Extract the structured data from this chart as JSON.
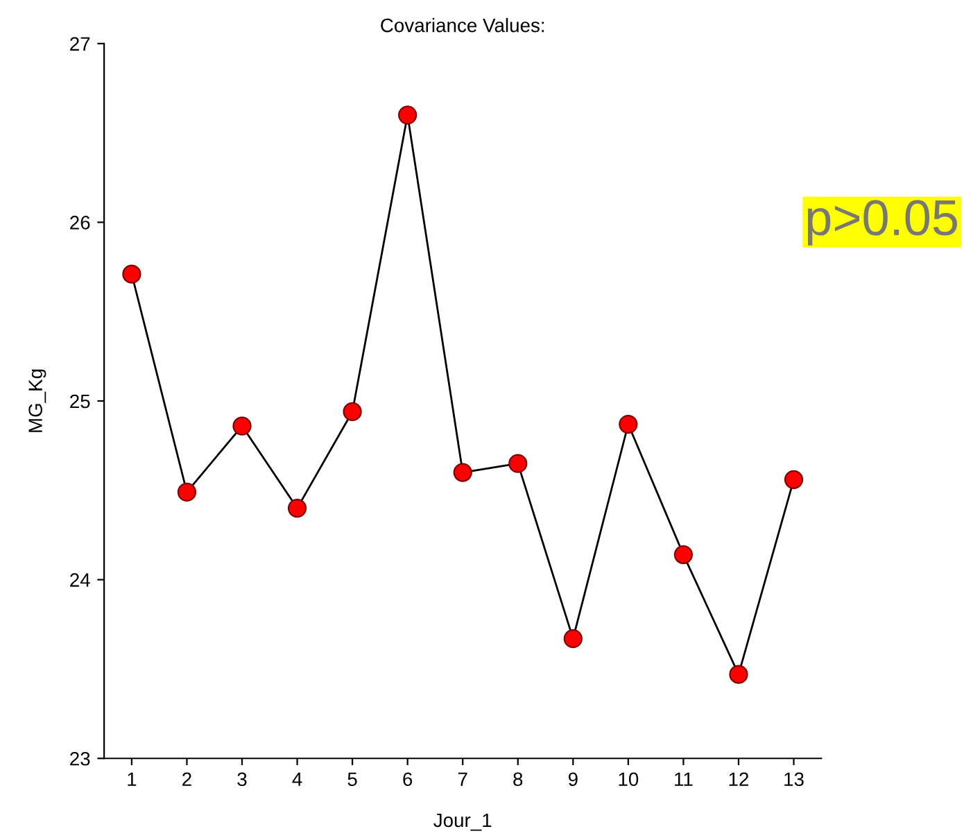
{
  "chart_data": {
    "type": "line",
    "title": "Covariance Values:",
    "xlabel": "Jour_1",
    "ylabel": "MG_Kg",
    "x": [
      1,
      2,
      3,
      4,
      5,
      6,
      7,
      8,
      9,
      10,
      11,
      12,
      13
    ],
    "series": [
      {
        "color": "#ff0000",
        "values": [
          25.71,
          24.49,
          24.86,
          24.4,
          24.94,
          26.6,
          24.6,
          24.65,
          23.67,
          24.87,
          24.14,
          23.47,
          24.56
        ]
      }
    ],
    "xlim": [
      0.5,
      13.5
    ],
    "xticks": [
      1,
      2,
      3,
      4,
      5,
      6,
      7,
      8,
      9,
      10,
      11,
      12,
      13
    ],
    "ylim": [
      23,
      27
    ],
    "yticks": [
      23,
      24,
      25,
      26,
      27
    ],
    "marker": "circle",
    "line_style": "solid",
    "grid": false,
    "legend": false,
    "annotations": [
      "p>0.05"
    ]
  }
}
